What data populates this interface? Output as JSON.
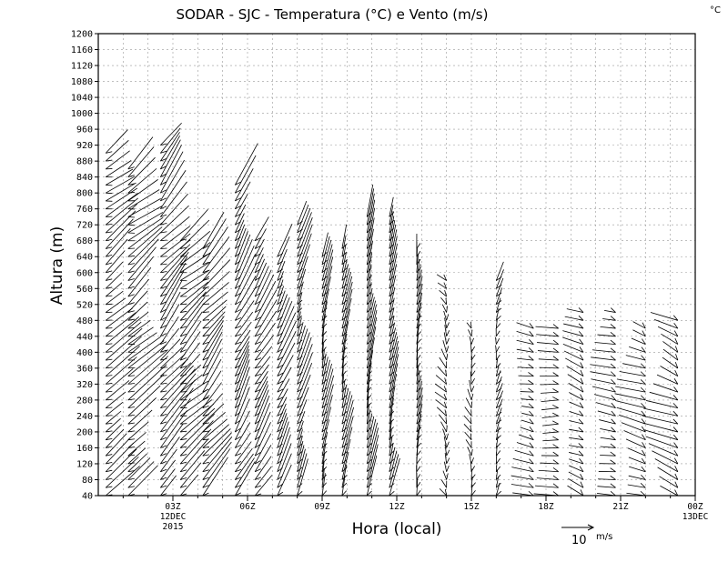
{
  "chart_data": {
    "type": "wind-barb-timeheight",
    "title": "SODAR - SJC - Temperatura (°C) e Vento (m/s)",
    "corner_unit": "°C",
    "xlabel": "Hora (local)",
    "ylabel": "Altura (m)",
    "y_range": [
      40,
      1200
    ],
    "y_step": 40,
    "y_ticks": [
      40,
      80,
      120,
      160,
      200,
      240,
      280,
      320,
      360,
      400,
      440,
      480,
      520,
      560,
      600,
      640,
      680,
      720,
      760,
      800,
      840,
      880,
      920,
      960,
      1000,
      1040,
      1080,
      1120,
      1160,
      1200
    ],
    "x_range_hours": [
      0,
      24
    ],
    "x_ticks": [
      {
        "hour": 3,
        "label": "03Z",
        "sub1": "12DEC",
        "sub2": "2015"
      },
      {
        "hour": 6,
        "label": "06Z"
      },
      {
        "hour": 9,
        "label": "09Z"
      },
      {
        "hour": 12,
        "label": "12Z"
      },
      {
        "hour": 15,
        "label": "15Z"
      },
      {
        "hour": 18,
        "label": "18Z"
      },
      {
        "hour": 21,
        "label": "21Z"
      },
      {
        "hour": 24,
        "label": "00Z",
        "sub1": "13DEC"
      }
    ],
    "grid": true,
    "reference_vector": {
      "value": "10",
      "unit": "m/s"
    },
    "columns": [
      {
        "hour": 0.3,
        "top": 900,
        "u": 8,
        "v": 7
      },
      {
        "hour": 1.2,
        "top": 860,
        "u": 9,
        "v": 8
      },
      {
        "hour": 2.5,
        "top": 920,
        "u": 8,
        "v": 10
      },
      {
        "hour": 3.3,
        "top": 680,
        "u": 8,
        "v": 8
      },
      {
        "hour": 4.2,
        "top": 660,
        "u": 7,
        "v": 9
      },
      {
        "hour": 5.5,
        "top": 820,
        "u": 5,
        "v": 10
      },
      {
        "hour": 6.3,
        "top": 690,
        "u": 5,
        "v": 9
      },
      {
        "hour": 7.2,
        "top": 650,
        "u": 4,
        "v": 9
      },
      {
        "hour": 8.0,
        "top": 720,
        "u": 3,
        "v": 9
      },
      {
        "hour": 9.0,
        "top": 640,
        "u": 2,
        "v": 9
      },
      {
        "hour": 9.8,
        "top": 660,
        "u": 2,
        "v": 9
      },
      {
        "hour": 10.8,
        "top": 740,
        "u": 2,
        "v": 10
      },
      {
        "hour": 11.7,
        "top": 740,
        "u": 2,
        "v": 9
      },
      {
        "hour": 12.8,
        "top": 660,
        "u": 1,
        "v": 7
      },
      {
        "hour": 14.0,
        "top": 580,
        "u": -2,
        "v": 3
      },
      {
        "hour": 15.0,
        "top": 460,
        "u": -1,
        "v": 3
      },
      {
        "hour": 16.0,
        "top": 580,
        "u": 1,
        "v": 4
      },
      {
        "hour": 17.5,
        "top": 460,
        "u": -5,
        "v": 1
      },
      {
        "hour": 18.5,
        "top": 470,
        "u": -6,
        "v": 0
      },
      {
        "hour": 19.5,
        "top": 500,
        "u": -5,
        "v": 2
      },
      {
        "hour": 20.8,
        "top": 500,
        "u": -6,
        "v": 1
      },
      {
        "hour": 22.0,
        "top": 470,
        "u": -7,
        "v": 2
      },
      {
        "hour": 23.3,
        "top": 490,
        "u": -8,
        "v": 3
      }
    ]
  }
}
